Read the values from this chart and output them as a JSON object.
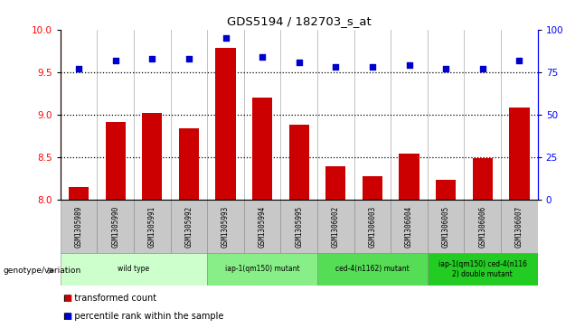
{
  "title": "GDS5194 / 182703_s_at",
  "samples": [
    "GSM1305989",
    "GSM1305990",
    "GSM1305991",
    "GSM1305992",
    "GSM1305993",
    "GSM1305994",
    "GSM1305995",
    "GSM1306002",
    "GSM1306003",
    "GSM1306004",
    "GSM1306005",
    "GSM1306006",
    "GSM1306007"
  ],
  "bar_values": [
    8.15,
    8.92,
    9.02,
    8.84,
    9.78,
    9.2,
    8.88,
    8.4,
    8.28,
    8.54,
    8.24,
    8.49,
    9.08
  ],
  "scatter_values": [
    77,
    82,
    83,
    83,
    95,
    84,
    81,
    78,
    78,
    79,
    77,
    77,
    82
  ],
  "ylim_left": [
    8.0,
    10.0
  ],
  "ylim_right": [
    0,
    100
  ],
  "yticks_left": [
    8.0,
    8.5,
    9.0,
    9.5,
    10.0
  ],
  "yticks_right": [
    0,
    25,
    50,
    75,
    100
  ],
  "bar_color": "#cc0000",
  "scatter_color": "#0000cc",
  "bar_base": 8.0,
  "groups": [
    {
      "label": "wild type",
      "indices": [
        0,
        1,
        2,
        3
      ],
      "color": "#ccffcc"
    },
    {
      "label": "iap-1(qm150) mutant",
      "indices": [
        4,
        5,
        6
      ],
      "color": "#88ee88"
    },
    {
      "label": "ced-4(n1162) mutant",
      "indices": [
        7,
        8,
        9
      ],
      "color": "#55dd55"
    },
    {
      "label": "iap-1(qm150) ced-4(n116\n2) double mutant",
      "indices": [
        10,
        11,
        12
      ],
      "color": "#22cc22"
    }
  ],
  "legend_items": [
    {
      "label": "transformed count",
      "color": "#cc0000"
    },
    {
      "label": "percentile rank within the sample",
      "color": "#0000cc"
    }
  ],
  "genotype_label": "genotype/variation",
  "grid_lines": [
    8.5,
    9.0,
    9.5
  ],
  "bg_color": "#ffffff",
  "plot_bg": "#ffffff",
  "sample_cell_color": "#c8c8c8",
  "cell_border_color": "#888888"
}
